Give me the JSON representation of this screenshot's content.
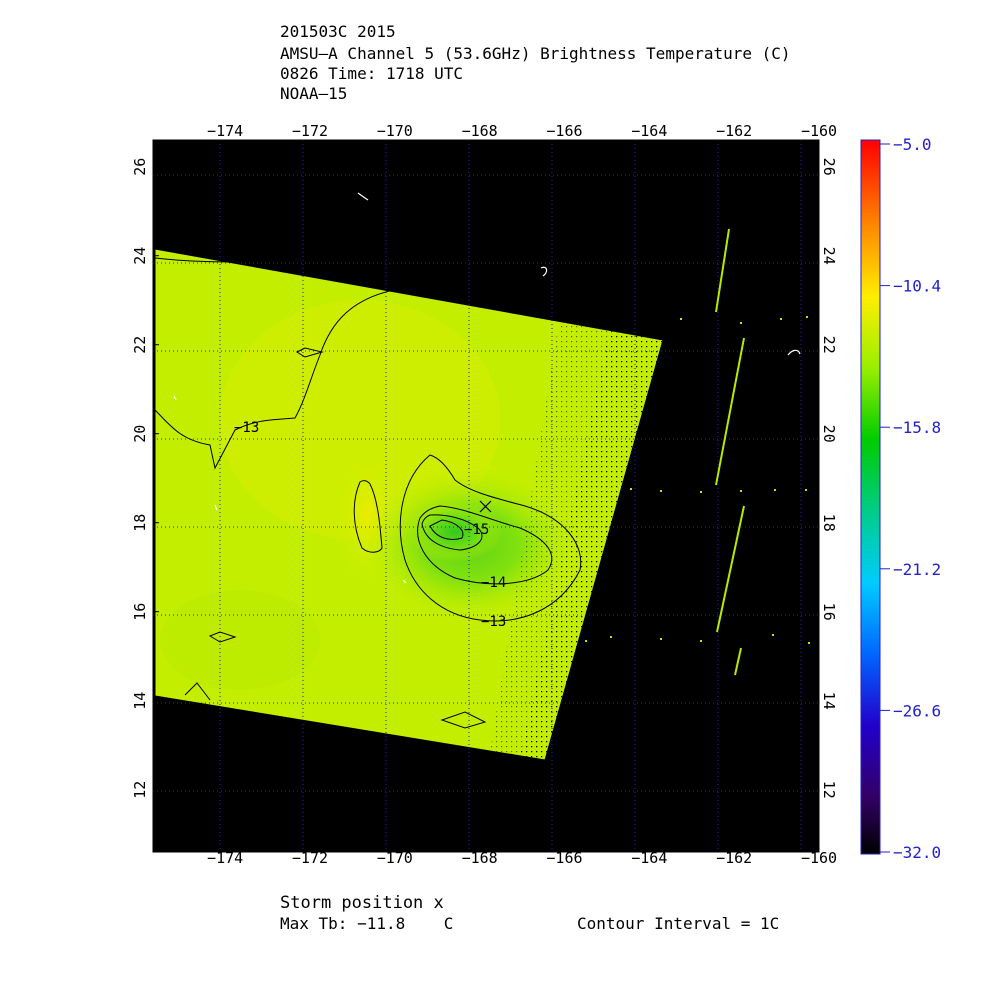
{
  "header": {
    "line1": "201503C 2015",
    "line2": "AMSU–A Channel 5 (53.6GHz) Brightness Temperature (C)",
    "line3": "0826 Time: 1718 UTC",
    "line4": "NOAA–15"
  },
  "footer": {
    "storm_position": "Storm position x",
    "max_tb": "Max Tb: −11.8    C",
    "contour_interval": "Contour Interval = 1C"
  },
  "colors": {
    "background": "#000000",
    "field": "#c8f000",
    "warm": "#e8e800",
    "cold": "#44cc22",
    "grid": "#2222cc",
    "contour": "#000000",
    "colorbar_ticks": "#2222cc"
  },
  "chart_data": {
    "type": "heatmap",
    "title": "AMSU–A Channel 5 (53.6GHz) Brightness Temperature (C)",
    "x_ticks": [
      "−174",
      "−172",
      "−170",
      "−168",
      "−166",
      "−164",
      "−162",
      "−160"
    ],
    "x_tick_values": [
      -174,
      -172,
      -170,
      -168,
      -166,
      -164,
      -162,
      -160
    ],
    "y_ticks": [
      "26",
      "24",
      "22",
      "20",
      "18",
      "16",
      "14",
      "12"
    ],
    "y_tick_values": [
      26,
      24,
      22,
      20,
      18,
      16,
      14,
      12
    ],
    "xlim": [
      -175.7,
      -160
    ],
    "ylim": [
      10.6,
      26.6
    ],
    "colorbar": {
      "labels": [
        "−5.0",
        "−10.4",
        "−15.8",
        "−21.2",
        "−26.6",
        "−32.0"
      ],
      "values": [
        -5.0,
        -10.4,
        -15.8,
        -21.2,
        -26.6,
        -32.0
      ],
      "range": [
        -32.0,
        -5.0
      ]
    },
    "contour_labels": [
      {
        "text": "−13",
        "lon": -173.2,
        "lat": 20.3
      },
      {
        "text": "−15",
        "lon": -167.9,
        "lat": 17.9
      },
      {
        "text": "−14",
        "lon": -167.5,
        "lat": 16.9
      },
      {
        "text": "−13",
        "lon": -167.5,
        "lat": 15.8
      }
    ],
    "storm_position": {
      "lon": -167.6,
      "lat": 18.5
    },
    "max_tb": -11.8,
    "contour_interval": 1,
    "satellite": "NOAA-15"
  }
}
